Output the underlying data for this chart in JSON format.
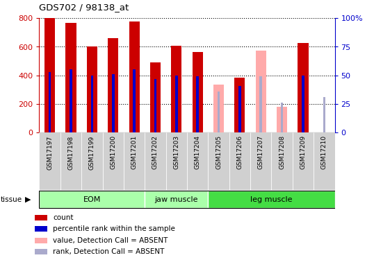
{
  "title": "GDS702 / 98138_at",
  "samples": [
    "GSM17197",
    "GSM17198",
    "GSM17199",
    "GSM17200",
    "GSM17201",
    "GSM17202",
    "GSM17203",
    "GSM17204",
    "GSM17205",
    "GSM17206",
    "GSM17207",
    "GSM17208",
    "GSM17209",
    "GSM17210"
  ],
  "count_values": [
    800,
    765,
    600,
    660,
    775,
    490,
    605,
    565,
    null,
    385,
    null,
    null,
    625,
    null
  ],
  "count_absent": [
    null,
    null,
    null,
    null,
    null,
    null,
    null,
    null,
    335,
    null,
    575,
    180,
    null,
    null
  ],
  "rank_values_pct": [
    53,
    55,
    50,
    51,
    55,
    47,
    50,
    49,
    null,
    41,
    null,
    null,
    50,
    null
  ],
  "rank_absent_pct": [
    null,
    null,
    null,
    null,
    null,
    null,
    null,
    null,
    36,
    null,
    49,
    26,
    null,
    31
  ],
  "ylim_left": [
    0,
    800
  ],
  "ylim_right": [
    0,
    100
  ],
  "yticks_left": [
    0,
    200,
    400,
    600,
    800
  ],
  "yticks_right": [
    0,
    25,
    50,
    75,
    100
  ],
  "ytick_labels_right": [
    "0",
    "25",
    "50",
    "75",
    "100%"
  ],
  "color_count": "#cc0000",
  "color_count_absent": "#ffaaaa",
  "color_rank": "#0000cc",
  "color_rank_absent": "#aaaacc",
  "bar_width": 0.5,
  "rank_bar_width": 0.12,
  "groups": [
    {
      "label": "EOM",
      "start": 0,
      "end": 4,
      "color": "#aaffaa"
    },
    {
      "label": "jaw muscle",
      "start": 5,
      "end": 7,
      "color": "#aaffaa"
    },
    {
      "label": "leg muscle",
      "start": 8,
      "end": 13,
      "color": "#44dd44"
    }
  ],
  "legend_items": [
    {
      "label": "count",
      "color": "#cc0000"
    },
    {
      "label": "percentile rank within the sample",
      "color": "#0000cc"
    },
    {
      "label": "value, Detection Call = ABSENT",
      "color": "#ffaaaa"
    },
    {
      "label": "rank, Detection Call = ABSENT",
      "color": "#aaaacc"
    }
  ],
  "bg_color": "#ffffff",
  "plot_bg": "#ffffff",
  "xtick_bg": "#d0d0d0"
}
